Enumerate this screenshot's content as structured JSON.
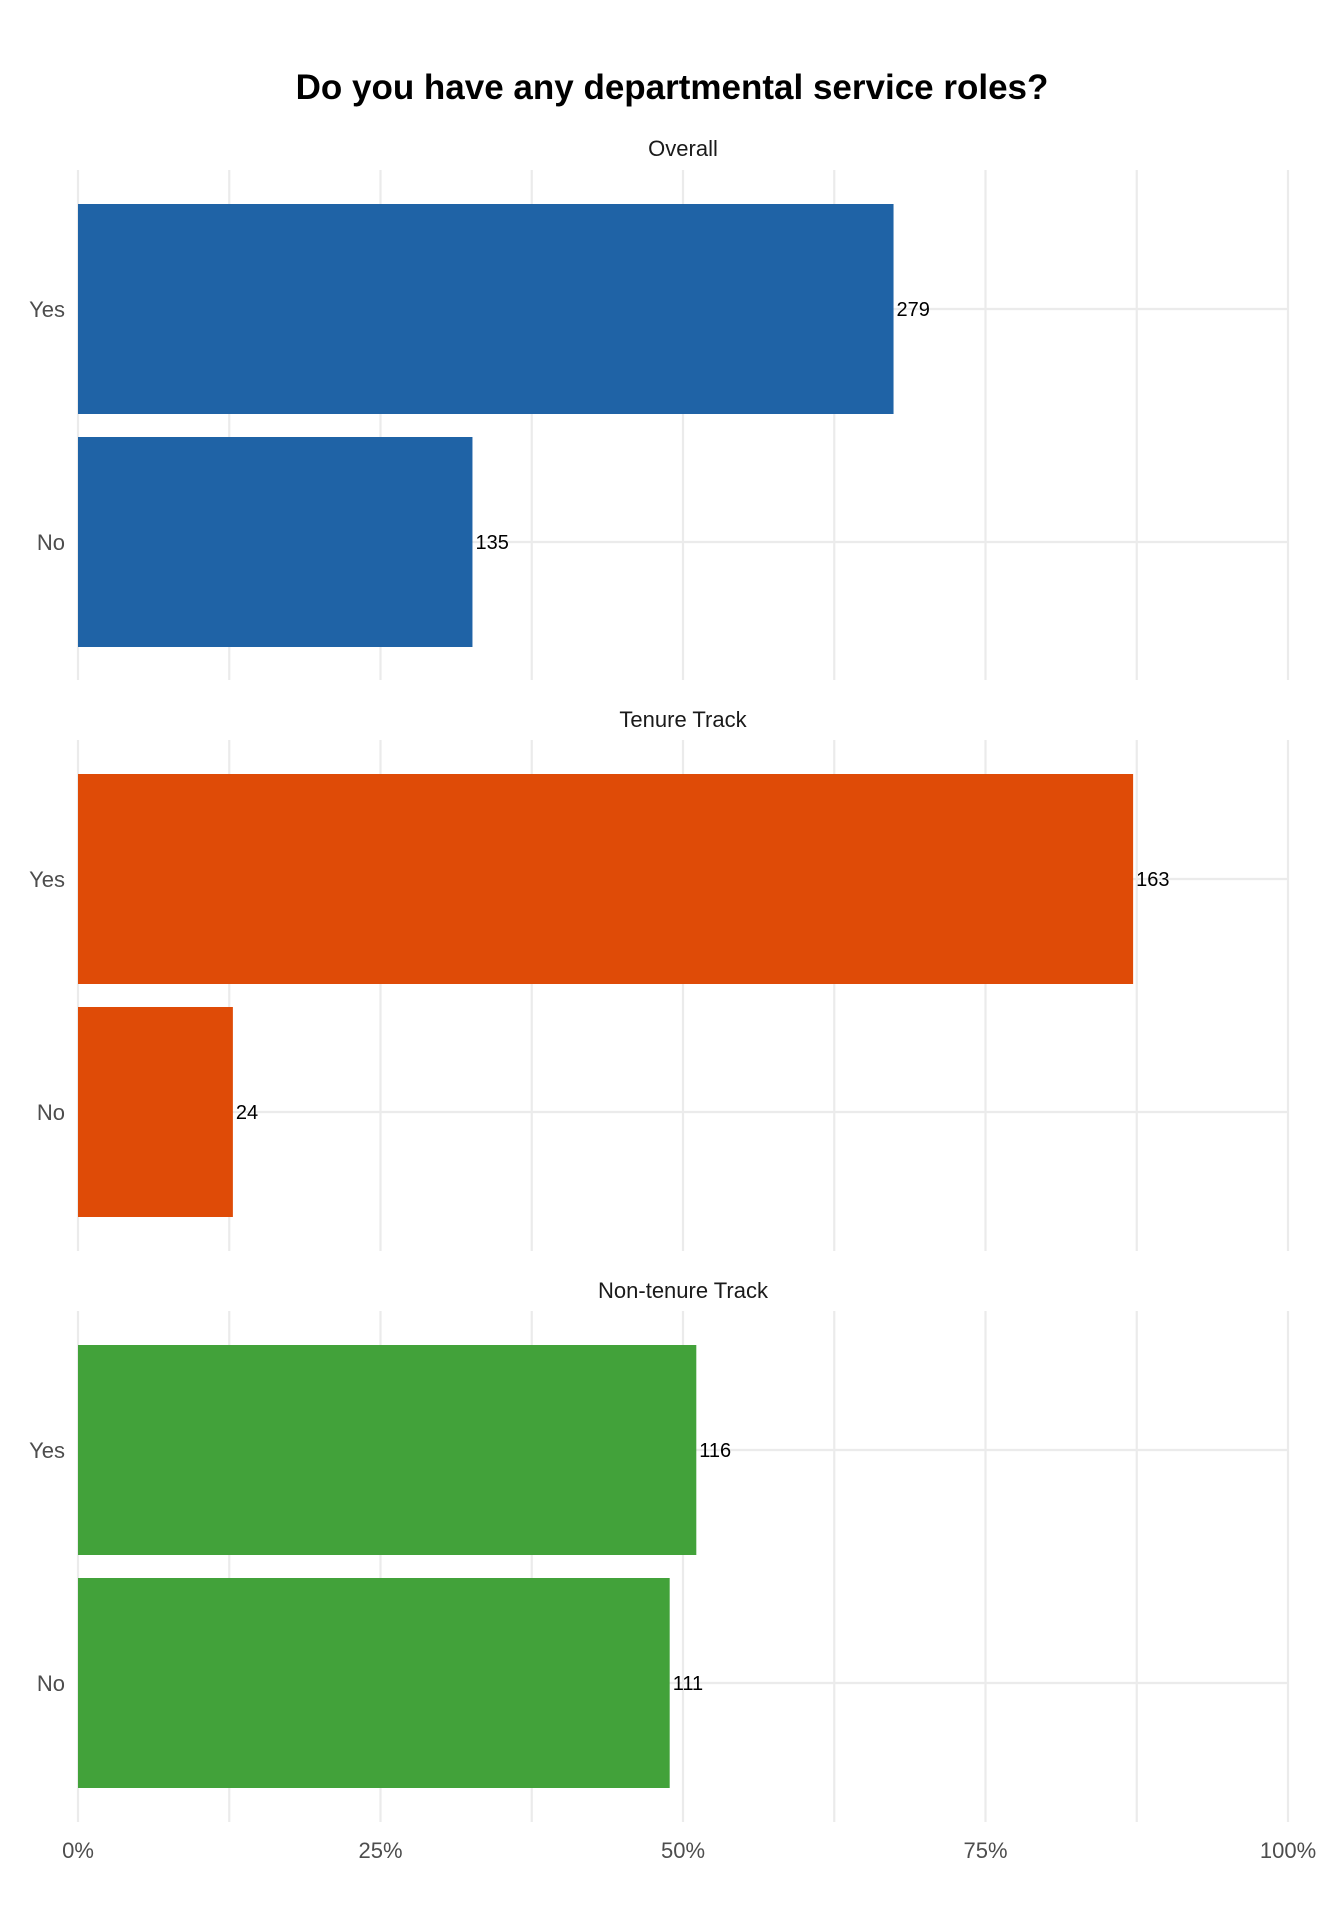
{
  "title": "Do you have any departmental service roles?",
  "chart_data": {
    "type": "bar",
    "orientation": "horizontal",
    "x_axis": {
      "min": 0,
      "max": 100,
      "unit": "%",
      "ticks": [
        0,
        25,
        50,
        75,
        100
      ],
      "tick_labels": [
        "0%",
        "25%",
        "50%",
        "75%",
        "100%"
      ],
      "minor_gridlines": [
        12.5,
        37.5,
        62.5,
        87.5
      ]
    },
    "categories": [
      "Yes",
      "No"
    ],
    "grid": true,
    "legend": "none",
    "facets": [
      {
        "name": "Overall",
        "color": "#1f63a6",
        "counts": [
          279,
          135
        ],
        "percents": [
          67.4,
          32.6
        ]
      },
      {
        "name": "Tenure Track",
        "color": "#df4b07",
        "counts": [
          163,
          24
        ],
        "percents": [
          87.2,
          12.8
        ]
      },
      {
        "name": "Non-tenure Track",
        "color": "#42a23a",
        "counts": [
          116,
          111
        ],
        "percents": [
          51.1,
          48.9
        ]
      }
    ]
  }
}
